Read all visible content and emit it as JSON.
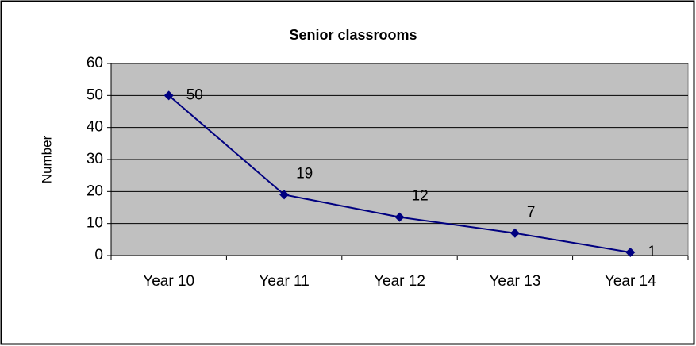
{
  "chart_data": {
    "type": "line",
    "title": "Senior classrooms",
    "y_label": "Number",
    "categories": [
      "Year 10",
      "Year 11",
      "Year 12",
      "Year 13",
      "Year 14"
    ],
    "values": [
      50,
      19,
      12,
      7,
      1
    ],
    "color": "#000080",
    "ylim": [
      0,
      60
    ],
    "yticks": [
      0,
      10,
      20,
      30,
      40,
      50,
      60
    ],
    "grid": true
  }
}
